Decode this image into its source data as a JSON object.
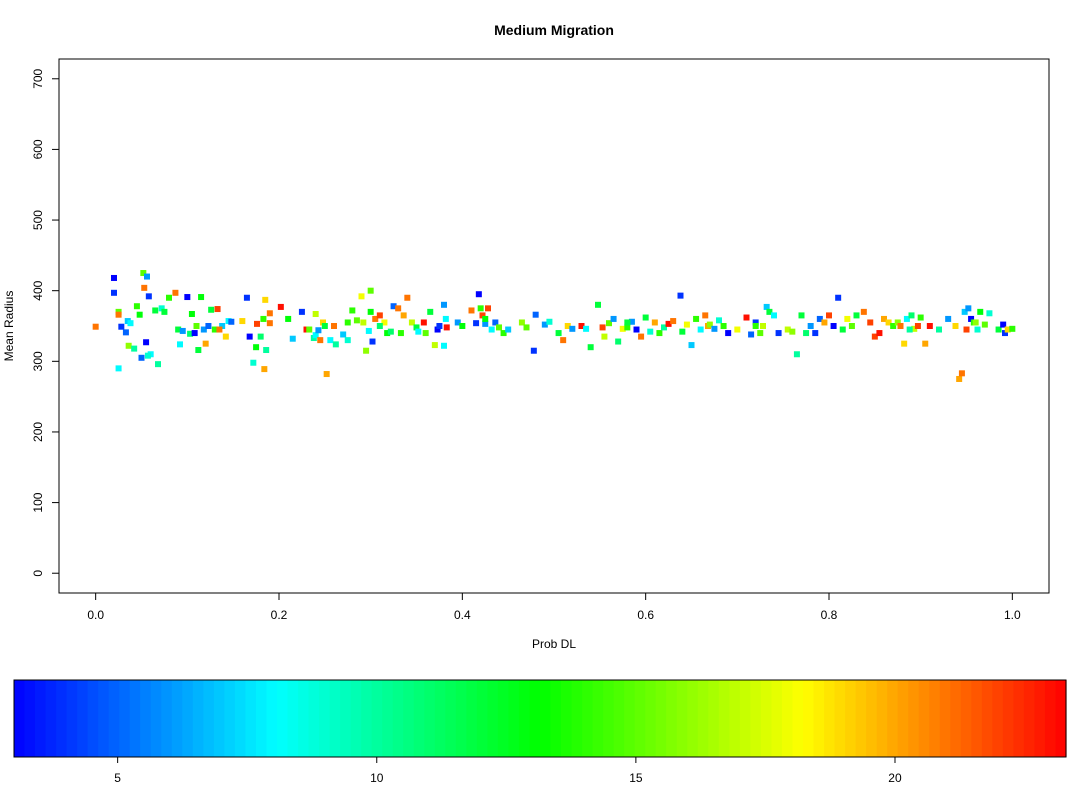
{
  "chart_data": [
    {
      "type": "scatter",
      "title": "Medium Migration",
      "xlabel": "Prob DL",
      "ylabel": "Mean Radius",
      "xlim": [
        -0.04,
        1.04
      ],
      "ylim": [
        -28,
        728
      ],
      "xticks": [
        "0.0",
        "0.2",
        "0.4",
        "0.6",
        "0.8",
        "1.0"
      ],
      "yticks": [
        "0",
        "100",
        "200",
        "300",
        "400",
        "500",
        "600",
        "700"
      ],
      "grid": false,
      "marker": "square",
      "color_scale": "rainbow",
      "points": [
        [
          0.0,
          349,
          21
        ],
        [
          0.02,
          418,
          3
        ],
        [
          0.02,
          397,
          4
        ],
        [
          0.025,
          290,
          8
        ],
        [
          0.025,
          370,
          15
        ],
        [
          0.028,
          349,
          4
        ],
        [
          0.025,
          366,
          21
        ],
        [
          0.033,
          341,
          5
        ],
        [
          0.035,
          357,
          7
        ],
        [
          0.036,
          322,
          16
        ],
        [
          0.038,
          354,
          8
        ],
        [
          0.042,
          318,
          10
        ],
        [
          0.045,
          378,
          14
        ],
        [
          0.048,
          366,
          13
        ],
        [
          0.052,
          425,
          15
        ],
        [
          0.053,
          404,
          21
        ],
        [
          0.05,
          305,
          5
        ],
        [
          0.055,
          327,
          3
        ],
        [
          0.056,
          420,
          6
        ],
        [
          0.058,
          392,
          4
        ],
        [
          0.06,
          310,
          8
        ],
        [
          0.057,
          308,
          9
        ],
        [
          0.065,
          372,
          12
        ],
        [
          0.068,
          296,
          10
        ],
        [
          0.072,
          375,
          9
        ],
        [
          0.075,
          370,
          12
        ],
        [
          0.08,
          390,
          14
        ],
        [
          0.087,
          397,
          21
        ],
        [
          0.09,
          345,
          12
        ],
        [
          0.092,
          324,
          8
        ],
        [
          0.095,
          343,
          6
        ],
        [
          0.1,
          391,
          3
        ],
        [
          0.103,
          339,
          11
        ],
        [
          0.105,
          367,
          13
        ],
        [
          0.108,
          340,
          3
        ],
        [
          0.11,
          350,
          15
        ],
        [
          0.112,
          316,
          12
        ],
        [
          0.115,
          391,
          13
        ],
        [
          0.118,
          345,
          6
        ],
        [
          0.12,
          325,
          20
        ],
        [
          0.123,
          350,
          5
        ],
        [
          0.126,
          373,
          12
        ],
        [
          0.13,
          345,
          14
        ],
        [
          0.133,
          374,
          22
        ],
        [
          0.138,
          350,
          7
        ],
        [
          0.142,
          335,
          19
        ],
        [
          0.145,
          357,
          8
        ],
        [
          0.148,
          356,
          5
        ],
        [
          0.16,
          357,
          19
        ],
        [
          0.165,
          390,
          4
        ],
        [
          0.168,
          335,
          3
        ],
        [
          0.172,
          298,
          9
        ],
        [
          0.175,
          320,
          13
        ],
        [
          0.176,
          353,
          22
        ],
        [
          0.18,
          335,
          11
        ],
        [
          0.183,
          360,
          14
        ],
        [
          0.184,
          289,
          20
        ],
        [
          0.185,
          387,
          19
        ],
        [
          0.186,
          316,
          10
        ],
        [
          0.19,
          354,
          21
        ],
        [
          0.19,
          368,
          21
        ],
        [
          0.202,
          377,
          23
        ],
        [
          0.21,
          360,
          13
        ],
        [
          0.215,
          332,
          7
        ],
        [
          0.225,
          370,
          4
        ],
        [
          0.23,
          345,
          23
        ],
        [
          0.233,
          345,
          15
        ],
        [
          0.238,
          333,
          10
        ],
        [
          0.24,
          337,
          8
        ],
        [
          0.24,
          367,
          17
        ],
        [
          0.243,
          344,
          6
        ],
        [
          0.245,
          330,
          21
        ],
        [
          0.248,
          355,
          19
        ],
        [
          0.25,
          350,
          12
        ],
        [
          0.252,
          282,
          20
        ],
        [
          0.256,
          330,
          8
        ],
        [
          0.26,
          350,
          21
        ],
        [
          0.262,
          324,
          10
        ],
        [
          0.27,
          338,
          7
        ],
        [
          0.275,
          355,
          14
        ],
        [
          0.275,
          330,
          9
        ],
        [
          0.28,
          372,
          14
        ],
        [
          0.285,
          358,
          15
        ],
        [
          0.29,
          392,
          18
        ],
        [
          0.292,
          355,
          17
        ],
        [
          0.295,
          315,
          16
        ],
        [
          0.298,
          343,
          8
        ],
        [
          0.3,
          400,
          15
        ],
        [
          0.3,
          370,
          13
        ],
        [
          0.302,
          328,
          4
        ],
        [
          0.305,
          360,
          21
        ],
        [
          0.31,
          365,
          22
        ],
        [
          0.315,
          355,
          18
        ],
        [
          0.318,
          340,
          13
        ],
        [
          0.322,
          342,
          11
        ],
        [
          0.325,
          378,
          5
        ],
        [
          0.33,
          375,
          21
        ],
        [
          0.333,
          340,
          14
        ],
        [
          0.336,
          365,
          20
        ],
        [
          0.34,
          390,
          21
        ],
        [
          0.345,
          355,
          17
        ],
        [
          0.35,
          348,
          12
        ],
        [
          0.352,
          342,
          8
        ],
        [
          0.358,
          355,
          23
        ],
        [
          0.36,
          340,
          15
        ],
        [
          0.365,
          370,
          12
        ],
        [
          0.37,
          323,
          17
        ],
        [
          0.373,
          345,
          3
        ],
        [
          0.375,
          350,
          4
        ],
        [
          0.38,
          380,
          6
        ],
        [
          0.382,
          360,
          8
        ],
        [
          0.383,
          348,
          23
        ],
        [
          0.395,
          355,
          6
        ],
        [
          0.4,
          350,
          13
        ],
        [
          0.41,
          372,
          21
        ],
        [
          0.415,
          354,
          4
        ],
        [
          0.418,
          395,
          3
        ],
        [
          0.42,
          375,
          14
        ],
        [
          0.422,
          365,
          22
        ],
        [
          0.425,
          353,
          6
        ],
        [
          0.428,
          375,
          22
        ],
        [
          0.432,
          345,
          8
        ],
        [
          0.436,
          355,
          5
        ],
        [
          0.44,
          348,
          15
        ],
        [
          0.445,
          340,
          14
        ],
        [
          0.45,
          345,
          7
        ],
        [
          0.465,
          355,
          16
        ],
        [
          0.47,
          348,
          15
        ],
        [
          0.478,
          315,
          4
        ],
        [
          0.48,
          366,
          5
        ],
        [
          0.49,
          352,
          6
        ],
        [
          0.495,
          356,
          9
        ],
        [
          0.505,
          340,
          12
        ],
        [
          0.51,
          330,
          21
        ],
        [
          0.515,
          350,
          19
        ],
        [
          0.52,
          346,
          6
        ],
        [
          0.53,
          350,
          23
        ],
        [
          0.535,
          346,
          8
        ],
        [
          0.54,
          320,
          12
        ],
        [
          0.548,
          380,
          12
        ],
        [
          0.553,
          348,
          22
        ],
        [
          0.555,
          335,
          17
        ],
        [
          0.56,
          354,
          15
        ],
        [
          0.565,
          360,
          6
        ],
        [
          0.57,
          328,
          11
        ],
        [
          0.575,
          346,
          18
        ],
        [
          0.58,
          348,
          14
        ],
        [
          0.585,
          356,
          6
        ],
        [
          0.59,
          345,
          3
        ],
        [
          0.595,
          335,
          21
        ],
        [
          0.6,
          362,
          12
        ],
        [
          0.605,
          342,
          9
        ],
        [
          0.61,
          355,
          20
        ],
        [
          0.615,
          340,
          14
        ],
        [
          0.62,
          348,
          10
        ],
        [
          0.625,
          353,
          23
        ],
        [
          0.63,
          357,
          21
        ],
        [
          0.638,
          393,
          4
        ],
        [
          0.64,
          342,
          12
        ],
        [
          0.645,
          352,
          18
        ],
        [
          0.65,
          323,
          7
        ],
        [
          0.655,
          360,
          14
        ],
        [
          0.66,
          345,
          8
        ],
        [
          0.665,
          365,
          21
        ],
        [
          0.668,
          350,
          20
        ],
        [
          0.67,
          352,
          16
        ],
        [
          0.675,
          346,
          6
        ],
        [
          0.68,
          358,
          9
        ],
        [
          0.685,
          350,
          14
        ],
        [
          0.69,
          340,
          3
        ],
        [
          0.7,
          345,
          18
        ],
        [
          0.71,
          362,
          23
        ],
        [
          0.715,
          338,
          5
        ],
        [
          0.72,
          355,
          4
        ],
        [
          0.725,
          340,
          15
        ],
        [
          0.728,
          350,
          17
        ],
        [
          0.732,
          377,
          7
        ],
        [
          0.735,
          370,
          12
        ],
        [
          0.74,
          365,
          8
        ],
        [
          0.745,
          340,
          4
        ],
        [
          0.755,
          345,
          17
        ],
        [
          0.76,
          342,
          16
        ],
        [
          0.765,
          310,
          10
        ],
        [
          0.77,
          365,
          12
        ],
        [
          0.775,
          340,
          11
        ],
        [
          0.78,
          350,
          6
        ],
        [
          0.785,
          340,
          4
        ],
        [
          0.79,
          360,
          5
        ],
        [
          0.795,
          355,
          20
        ],
        [
          0.8,
          365,
          22
        ],
        [
          0.805,
          350,
          3
        ],
        [
          0.81,
          390,
          4
        ],
        [
          0.815,
          345,
          12
        ],
        [
          0.82,
          360,
          18
        ],
        [
          0.825,
          350,
          15
        ],
        [
          0.83,
          365,
          12
        ],
        [
          0.838,
          370,
          21
        ],
        [
          0.845,
          355,
          22
        ],
        [
          0.85,
          335,
          22
        ],
        [
          0.855,
          340,
          23
        ],
        [
          0.86,
          360,
          20
        ],
        [
          0.865,
          355,
          19
        ],
        [
          0.87,
          350,
          14
        ],
        [
          0.875,
          355,
          16
        ],
        [
          0.878,
          350,
          21
        ],
        [
          0.882,
          325,
          19
        ],
        [
          0.885,
          360,
          8
        ],
        [
          0.89,
          365,
          11
        ],
        [
          0.893,
          346,
          17
        ],
        [
          0.897,
          350,
          22
        ],
        [
          0.9,
          362,
          14
        ],
        [
          0.905,
          325,
          20
        ],
        [
          0.91,
          350,
          23
        ],
        [
          0.92,
          345,
          10
        ],
        [
          0.93,
          360,
          6
        ],
        [
          0.938,
          350,
          19
        ],
        [
          0.942,
          275,
          20
        ],
        [
          0.945,
          283,
          21
        ],
        [
          0.948,
          370,
          7
        ],
        [
          0.95,
          345,
          22
        ],
        [
          0.952,
          375,
          6
        ],
        [
          0.955,
          360,
          3
        ],
        [
          0.958,
          355,
          14
        ],
        [
          0.962,
          345,
          9
        ],
        [
          0.965,
          370,
          13
        ],
        [
          0.97,
          352,
          15
        ],
        [
          0.975,
          368,
          9
        ],
        [
          0.985,
          345,
          12
        ],
        [
          0.99,
          352,
          3
        ],
        [
          0.992,
          340,
          4
        ],
        [
          0.995,
          345,
          19
        ],
        [
          1.0,
          346,
          14
        ],
        [
          0.96,
          355,
          16
        ],
        [
          0.135,
          345,
          21
        ],
        [
          0.31,
          350,
          11
        ],
        [
          0.38,
          322,
          8
        ],
        [
          0.425,
          360,
          13
        ],
        [
          0.58,
          355,
          12
        ],
        [
          0.72,
          350,
          14
        ],
        [
          0.888,
          345,
          10
        ]
      ]
    },
    {
      "type": "heatmap",
      "colorbar": true,
      "range": [
        3,
        23.3
      ],
      "ticks": [
        "5",
        "10",
        "15",
        "20"
      ]
    }
  ]
}
